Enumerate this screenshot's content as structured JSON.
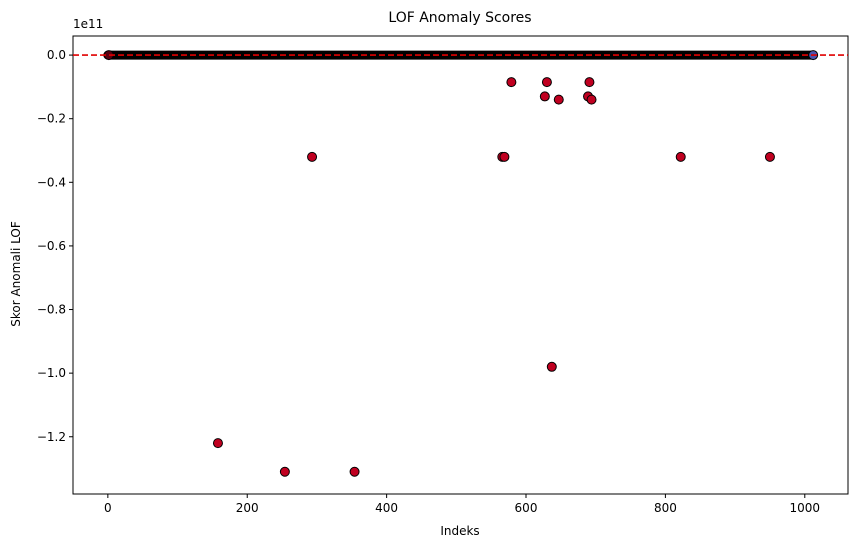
{
  "chart_data": {
    "type": "scatter",
    "title": "LOF Anomaly Scores",
    "xlabel": "Indeks",
    "ylabel": "Skor Anomali LOF",
    "offset_label": "1e11",
    "xlim": [
      -50,
      1062
    ],
    "ylim": [
      -1.38,
      0.06
    ],
    "x_ticks": [
      0,
      200,
      400,
      600,
      800,
      1000
    ],
    "x_tick_labels": [
      "0",
      "200",
      "400",
      "600",
      "800",
      "1000"
    ],
    "y_ticks": [
      0.0,
      -0.2,
      -0.4,
      -0.6,
      -0.8,
      -1.0,
      -1.2
    ],
    "y_tick_labels": [
      "0.0",
      "−0.2",
      "−0.4",
      "−0.6",
      "−0.8",
      "−1.0",
      "−1.2"
    ],
    "threshold": {
      "y": 0.0,
      "style": "dashed",
      "color": "#e00000"
    },
    "inlier_band": {
      "x_start": 0,
      "x_end": 1012,
      "y": 0.0,
      "color": "#000000"
    },
    "inlier_end_point": {
      "x": 1012,
      "y": 0.0,
      "color": "#4b55b0"
    },
    "anomaly_color": "#c00020",
    "points": [
      {
        "x": 158,
        "y": -1.22
      },
      {
        "x": 254,
        "y": -1.31
      },
      {
        "x": 293,
        "y": -0.32
      },
      {
        "x": 354,
        "y": -1.31
      },
      {
        "x": 566,
        "y": -0.32
      },
      {
        "x": 569,
        "y": -0.32
      },
      {
        "x": 579,
        "y": -0.085
      },
      {
        "x": 627,
        "y": -0.13
      },
      {
        "x": 630,
        "y": -0.085
      },
      {
        "x": 637,
        "y": -0.98
      },
      {
        "x": 647,
        "y": -0.14
      },
      {
        "x": 689,
        "y": -0.13
      },
      {
        "x": 691,
        "y": -0.085
      },
      {
        "x": 694,
        "y": -0.14
      },
      {
        "x": 822,
        "y": -0.32
      },
      {
        "x": 950,
        "y": -0.32
      }
    ],
    "grid": false
  }
}
